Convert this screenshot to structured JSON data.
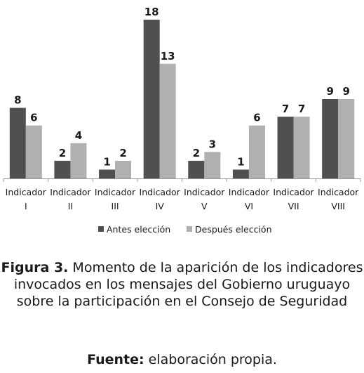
{
  "chart_data": {
    "type": "bar",
    "categories": [
      [
        "Indicador",
        "I"
      ],
      [
        "Indicador",
        "II"
      ],
      [
        "Indicador",
        "III"
      ],
      [
        "Indicador",
        "IV"
      ],
      [
        "Indicador",
        "V"
      ],
      [
        "Indicador",
        "VI"
      ],
      [
        "Indicador",
        "VII"
      ],
      [
        "Indicador",
        "VIII"
      ]
    ],
    "series": [
      {
        "name": "Antes elección",
        "color": "#505050",
        "values": [
          8,
          2,
          1,
          18,
          2,
          1,
          7,
          9
        ]
      },
      {
        "name": "Después elección",
        "color": "#b0b0b0",
        "values": [
          6,
          4,
          2,
          13,
          3,
          6,
          7,
          9
        ]
      }
    ],
    "ylim": [
      0,
      18
    ],
    "data_labels": true,
    "grid": false,
    "legend": "bottom"
  },
  "caption": {
    "label": "Figura 3.",
    "text": " Momento de la aparición de los indicadores invocados en los mensajes del Gobierno uruguayo sobre la participación en el Consejo de Seguridad"
  },
  "source": {
    "label": "Fuente:",
    "text": " elaboración propia."
  }
}
